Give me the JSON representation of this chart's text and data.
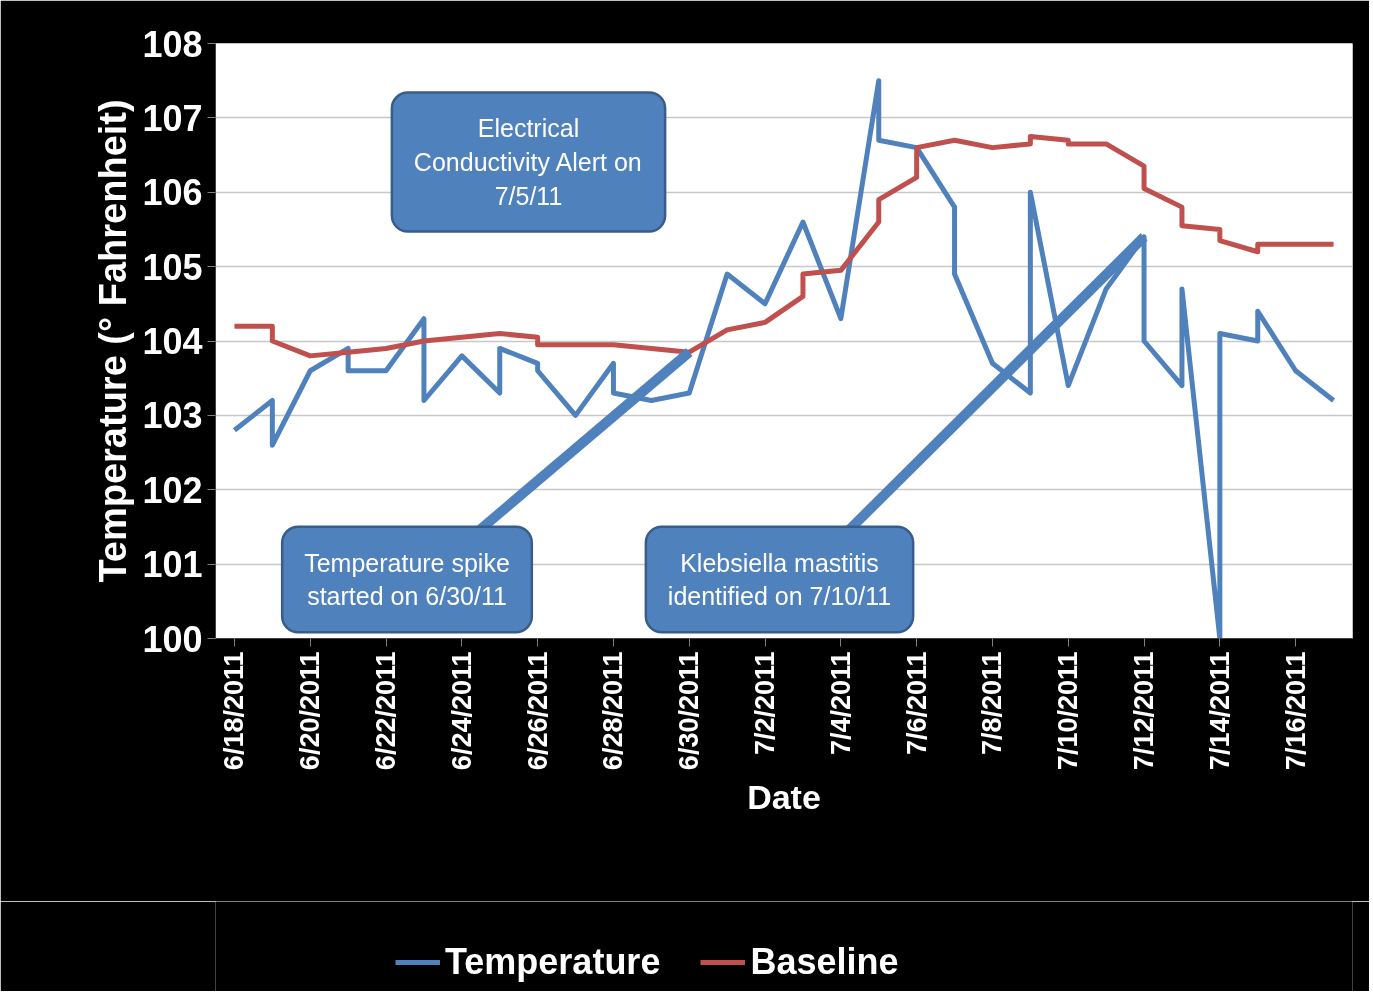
{
  "chart_data": {
    "type": "line",
    "xlabel": "Date",
    "ylabel": "Temperature (° Fahrenheit)",
    "xlim": [
      "2011-06-17T12:00",
      "2011-07-17T12:00"
    ],
    "xticks": [
      {
        "value": "2011-06-18",
        "label": "6/18/2011"
      },
      {
        "value": "2011-06-20",
        "label": "6/20/2011"
      },
      {
        "value": "2011-06-22",
        "label": "6/22/2011"
      },
      {
        "value": "2011-06-24",
        "label": "6/24/2011"
      },
      {
        "value": "2011-06-26",
        "label": "6/26/2011"
      },
      {
        "value": "2011-06-28",
        "label": "6/28/2011"
      },
      {
        "value": "2011-06-30",
        "label": "6/30/2011"
      },
      {
        "value": "2011-07-02",
        "label": "7/2/2011"
      },
      {
        "value": "2011-07-04",
        "label": "7/4/2011"
      },
      {
        "value": "2011-07-06",
        "label": "7/6/2011"
      },
      {
        "value": "2011-07-08",
        "label": "7/8/2011"
      },
      {
        "value": "2011-07-10",
        "label": "7/10/2011"
      },
      {
        "value": "2011-07-12",
        "label": "7/12/2011"
      },
      {
        "value": "2011-07-14",
        "label": "7/14/2011"
      },
      {
        "value": "2011-07-16",
        "label": "7/16/2011"
      }
    ],
    "ylim": [
      100,
      108
    ],
    "yticks": [
      100,
      101,
      102,
      103,
      104,
      105,
      106,
      107,
      108
    ],
    "grid": "y",
    "legend": "bottom",
    "line_style": "solid",
    "marker": "none",
    "series": [
      {
        "name": "Temperature",
        "color": "#4f81bd",
        "x": [
          "2011-06-18",
          "2011-06-19",
          "2011-06-19",
          "2011-06-20",
          "2011-06-21",
          "2011-06-21",
          "2011-06-22",
          "2011-06-23",
          "2011-06-23",
          "2011-06-24",
          "2011-06-25",
          "2011-06-25",
          "2011-06-26",
          "2011-06-26",
          "2011-06-27",
          "2011-06-28",
          "2011-06-28",
          "2011-06-29",
          "2011-06-30",
          "2011-07-01",
          "2011-07-02",
          "2011-07-03",
          "2011-07-04",
          "2011-07-05",
          "2011-07-05",
          "2011-07-06",
          "2011-07-07",
          "2011-07-07",
          "2011-07-08",
          "2011-07-09",
          "2011-07-09",
          "2011-07-10",
          "2011-07-11",
          "2011-07-12",
          "2011-07-12",
          "2011-07-13",
          "2011-07-13",
          "2011-07-14",
          "2011-07-14",
          "2011-07-15",
          "2011-07-15",
          "2011-07-16",
          "2011-07-17"
        ],
        "values": [
          102.8,
          103.2,
          102.6,
          103.6,
          103.9,
          103.6,
          103.6,
          104.3,
          103.2,
          103.8,
          103.3,
          103.9,
          103.7,
          103.6,
          103.0,
          103.7,
          103.3,
          103.2,
          103.3,
          104.9,
          104.5,
          105.6,
          104.3,
          107.5,
          106.7,
          106.6,
          105.8,
          104.9,
          103.7,
          103.3,
          106.0,
          103.4,
          104.7,
          105.4,
          104.0,
          103.4,
          104.7,
          100.0,
          104.1,
          104.0,
          104.4,
          103.6,
          103.2
        ]
      },
      {
        "name": "Baseline",
        "color": "#c0504d",
        "x": [
          "2011-06-18",
          "2011-06-19",
          "2011-06-19",
          "2011-06-20",
          "2011-06-21",
          "2011-06-22",
          "2011-06-23",
          "2011-06-24",
          "2011-06-25",
          "2011-06-26",
          "2011-06-26",
          "2011-06-27",
          "2011-06-28",
          "2011-06-29",
          "2011-06-30",
          "2011-07-01",
          "2011-07-02",
          "2011-07-03",
          "2011-07-03",
          "2011-07-04",
          "2011-07-05",
          "2011-07-05",
          "2011-07-06",
          "2011-07-06",
          "2011-07-07",
          "2011-07-08",
          "2011-07-09",
          "2011-07-09",
          "2011-07-10",
          "2011-07-10",
          "2011-07-11",
          "2011-07-12",
          "2011-07-12",
          "2011-07-13",
          "2011-07-13",
          "2011-07-14",
          "2011-07-14",
          "2011-07-15",
          "2011-07-15",
          "2011-07-16",
          "2011-07-17"
        ],
        "values": [
          104.2,
          104.2,
          104.0,
          103.8,
          103.85,
          103.9,
          104.0,
          104.05,
          104.1,
          104.05,
          103.95,
          103.95,
          103.95,
          103.9,
          103.85,
          104.15,
          104.25,
          104.6,
          104.9,
          104.95,
          105.6,
          105.9,
          106.2,
          106.6,
          106.7,
          106.6,
          106.65,
          106.75,
          106.7,
          106.65,
          106.65,
          106.35,
          106.05,
          105.8,
          105.55,
          105.5,
          105.35,
          105.2,
          105.3,
          105.3,
          105.3
        ]
      }
    ],
    "annotations": [
      "Electrical Conductivity Alert on 7/5/11",
      {
        "text": "Temperature spike started on 6/30/11",
        "x": "2011-06-30",
        "y": 103.85
      },
      {
        "text": "Klebsiella mastitis identified on 7/10/11",
        "x": "2011-07-12",
        "y": 105.4
      }
    ]
  }
}
